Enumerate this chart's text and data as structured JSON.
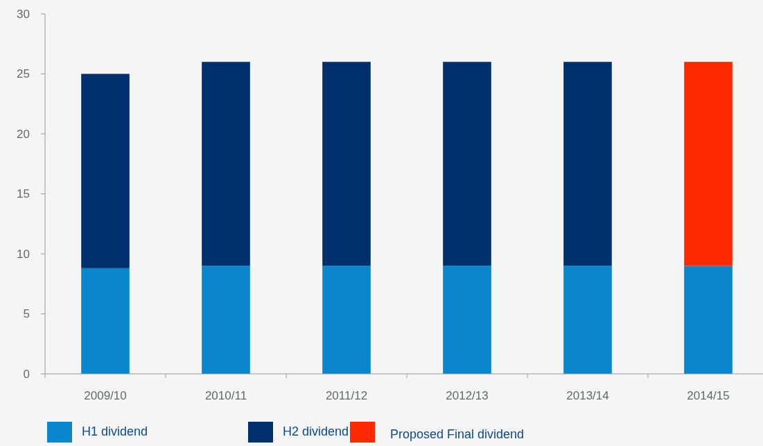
{
  "chart_data": {
    "type": "bar",
    "stacked": true,
    "categories": [
      "2009/10",
      "2010/11",
      "2011/12",
      "2012/13",
      "2013/14",
      "2014/15"
    ],
    "series": [
      {
        "name": "H1 dividend",
        "color": "#0a86cc",
        "values": [
          8.8,
          9,
          9,
          9,
          9,
          9
        ]
      },
      {
        "name": "H2 dividend",
        "color": "#002f6e",
        "values": [
          16.2,
          17,
          17,
          17,
          17,
          null
        ]
      },
      {
        "name": "Proposed Final dividend",
        "color": "#ff2a00",
        "values": [
          null,
          null,
          null,
          null,
          null,
          17
        ]
      }
    ],
    "ylim": [
      0,
      30
    ],
    "yticks": [
      0,
      5,
      10,
      15,
      20,
      25,
      30
    ],
    "grid": false,
    "legend": "bottom left"
  }
}
